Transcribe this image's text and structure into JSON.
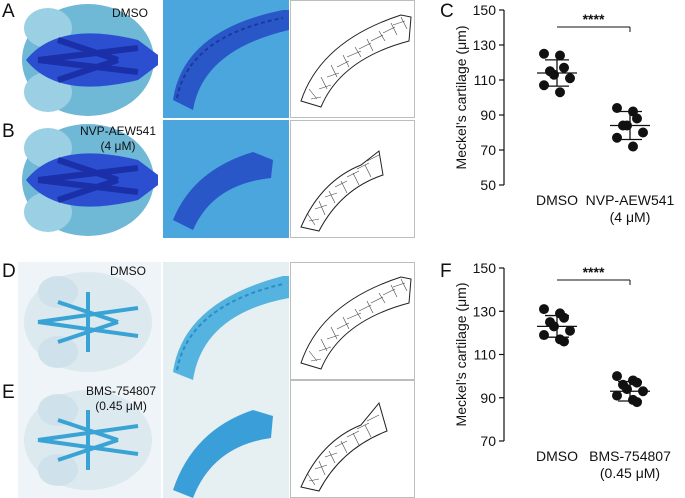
{
  "figure": {
    "panel_letters": [
      "A",
      "B",
      "C",
      "D",
      "E",
      "F"
    ],
    "row_labels": {
      "A": "DMSO",
      "B": [
        "NVP-AEW541",
        "(4 μM)"
      ],
      "D": "DMSO",
      "E": [
        "BMS-754807",
        "(0.45 μM)"
      ]
    }
  },
  "chart_data": [
    {
      "type": "scatter",
      "panel": "C",
      "title": "",
      "ylabel": "Meckel’s cartilage (μm)",
      "xlabel": "",
      "ylim": [
        50,
        150
      ],
      "yticks": [
        50,
        70,
        90,
        110,
        130,
        150
      ],
      "categories": [
        "DMSO",
        "NVP-AEW541 (4 μM)"
      ],
      "category_labels": [
        [
          "DMSO"
        ],
        [
          "NVP-AEW541",
          "(4 μM)"
        ]
      ],
      "significance": "****",
      "series": [
        {
          "values": [
            125,
            124,
            117,
            115,
            113,
            111,
            107,
            103
          ],
          "mean": 114,
          "sd": 7.5
        },
        {
          "values": [
            94,
            92,
            88,
            84,
            84,
            80,
            77,
            72
          ],
          "mean": 84,
          "sd": 8
        }
      ],
      "point_color": "#111111"
    },
    {
      "type": "scatter",
      "panel": "F",
      "title": "",
      "ylabel": "Meckel’s cartilage (μm)",
      "xlabel": "",
      "ylim": [
        70,
        150
      ],
      "yticks": [
        70,
        90,
        110,
        130,
        150
      ],
      "categories": [
        "DMSO",
        "BMS-754807 (0.45 μM)"
      ],
      "category_labels": [
        [
          "DMSO"
        ],
        [
          "BMS-754807",
          "(0.45 μM)"
        ]
      ],
      "significance": "****",
      "series": [
        {
          "values": [
            131,
            129,
            127,
            125,
            123,
            121,
            119,
            117,
            116
          ],
          "mean": 123,
          "sd": 5
        },
        {
          "values": [
            100,
            98,
            97,
            96,
            94,
            93,
            91,
            89,
            88
          ],
          "mean": 93,
          "sd": 4.5
        }
      ],
      "point_color": "#111111"
    }
  ]
}
